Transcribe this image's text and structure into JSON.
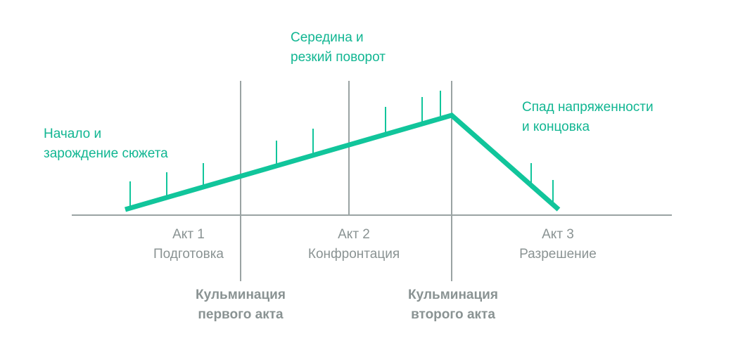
{
  "colors": {
    "accent": "#11c59b",
    "axis": "#9aa3a3",
    "label_gray": "#8a9393",
    "label_teal": "#11b692"
  },
  "phases": {
    "beginning": {
      "line1": "Начало и",
      "line2": "зарождение сюжета"
    },
    "middle": {
      "line1": "Середина и",
      "line2": "резкий поворот"
    },
    "ending": {
      "line1": "Спад напряженности",
      "line2": "и концовка"
    }
  },
  "acts": [
    {
      "title": "Акт 1",
      "subtitle": "Подготовка"
    },
    {
      "title": "Акт 2",
      "subtitle": "Конфронтация"
    },
    {
      "title": "Акт 3",
      "subtitle": "Разрешение"
    }
  ],
  "climaxes": [
    {
      "line1": "Кульминация",
      "line2": "первого акта"
    },
    {
      "line1": "Кульминация",
      "line2": "второго акта"
    }
  ]
}
